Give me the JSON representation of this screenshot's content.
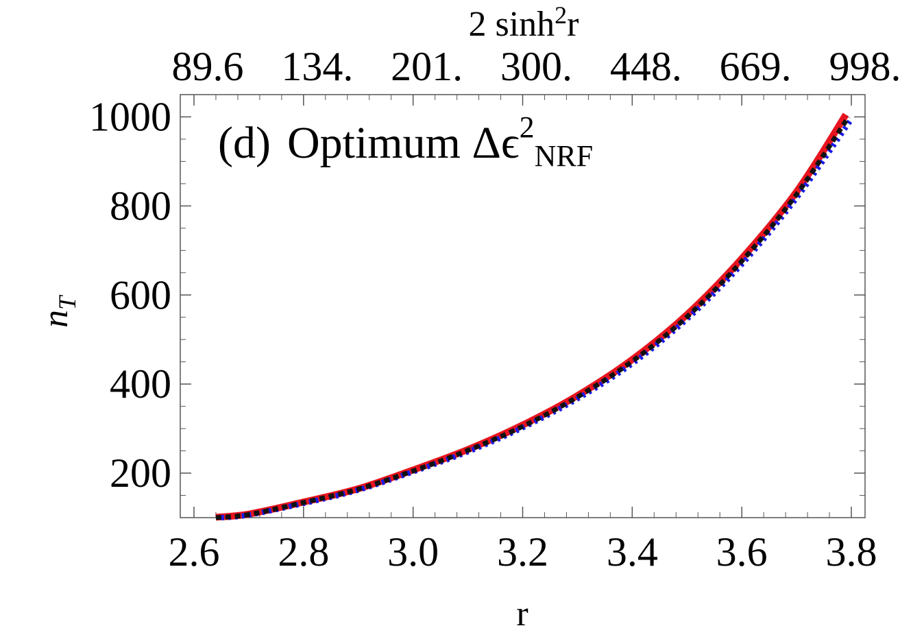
{
  "chart_data": {
    "type": "line",
    "annotation": {
      "prefix": "(d)",
      "main": "Optimum Δϵ",
      "sup": "2",
      "sub": "NRF"
    },
    "xlabel": "r",
    "ylabel": "n",
    "ylabel_sub": "T",
    "top_xlabel": "2 sinh",
    "top_xlabel_sup": "2",
    "top_xlabel_suffix": "r",
    "xlim": [
      2.575,
      3.825
    ],
    "ylim": [
      100,
      1050
    ],
    "x_ticks": [
      2.6,
      2.8,
      3.0,
      3.2,
      3.4,
      3.6,
      3.8
    ],
    "x_tick_labels": [
      "2.6",
      "2.8",
      "3.0",
      "3.2",
      "3.4",
      "3.6",
      "3.8"
    ],
    "y_ticks": [
      200,
      400,
      600,
      800,
      1000
    ],
    "y_tick_labels": [
      "200",
      "400",
      "600",
      "800",
      "1000"
    ],
    "top_ticks": [
      2.6,
      2.8,
      3.0,
      3.2,
      3.4,
      3.6,
      3.8
    ],
    "top_tick_labels": [
      "89.6",
      "134.",
      "201.",
      "300.",
      "448.",
      "669.",
      "998."
    ],
    "grid": false,
    "series": [
      {
        "color": "#e8141e",
        "style": "solid",
        "x": [
          2.64,
          2.7,
          2.8,
          2.9,
          3.0,
          3.1,
          3.2,
          3.3,
          3.4,
          3.5,
          3.6,
          3.7,
          3.79
        ],
        "y": [
          101,
          108,
          135,
          165,
          207,
          253,
          308,
          374,
          455,
          556,
          682,
          832,
          1005
        ]
      },
      {
        "color": "#1a1ae6",
        "style": "dotted",
        "x": [
          2.65,
          2.7,
          2.8,
          2.9,
          3.0,
          3.1,
          3.2,
          3.3,
          3.4,
          3.5,
          3.6,
          3.7,
          3.8
        ],
        "y": [
          100,
          106,
          132,
          162,
          203,
          248,
          302,
          367,
          446,
          546,
          669,
          818,
          995
        ]
      },
      {
        "color": "#111111",
        "style": "dashed",
        "x": [
          2.64,
          2.7,
          2.8,
          2.9,
          3.0,
          3.1,
          3.2,
          3.3,
          3.4,
          3.5,
          3.6,
          3.7,
          3.795
        ],
        "y": [
          100,
          107,
          134,
          164,
          205,
          251,
          305,
          371,
          451,
          551,
          676,
          826,
          1000
        ]
      }
    ]
  }
}
